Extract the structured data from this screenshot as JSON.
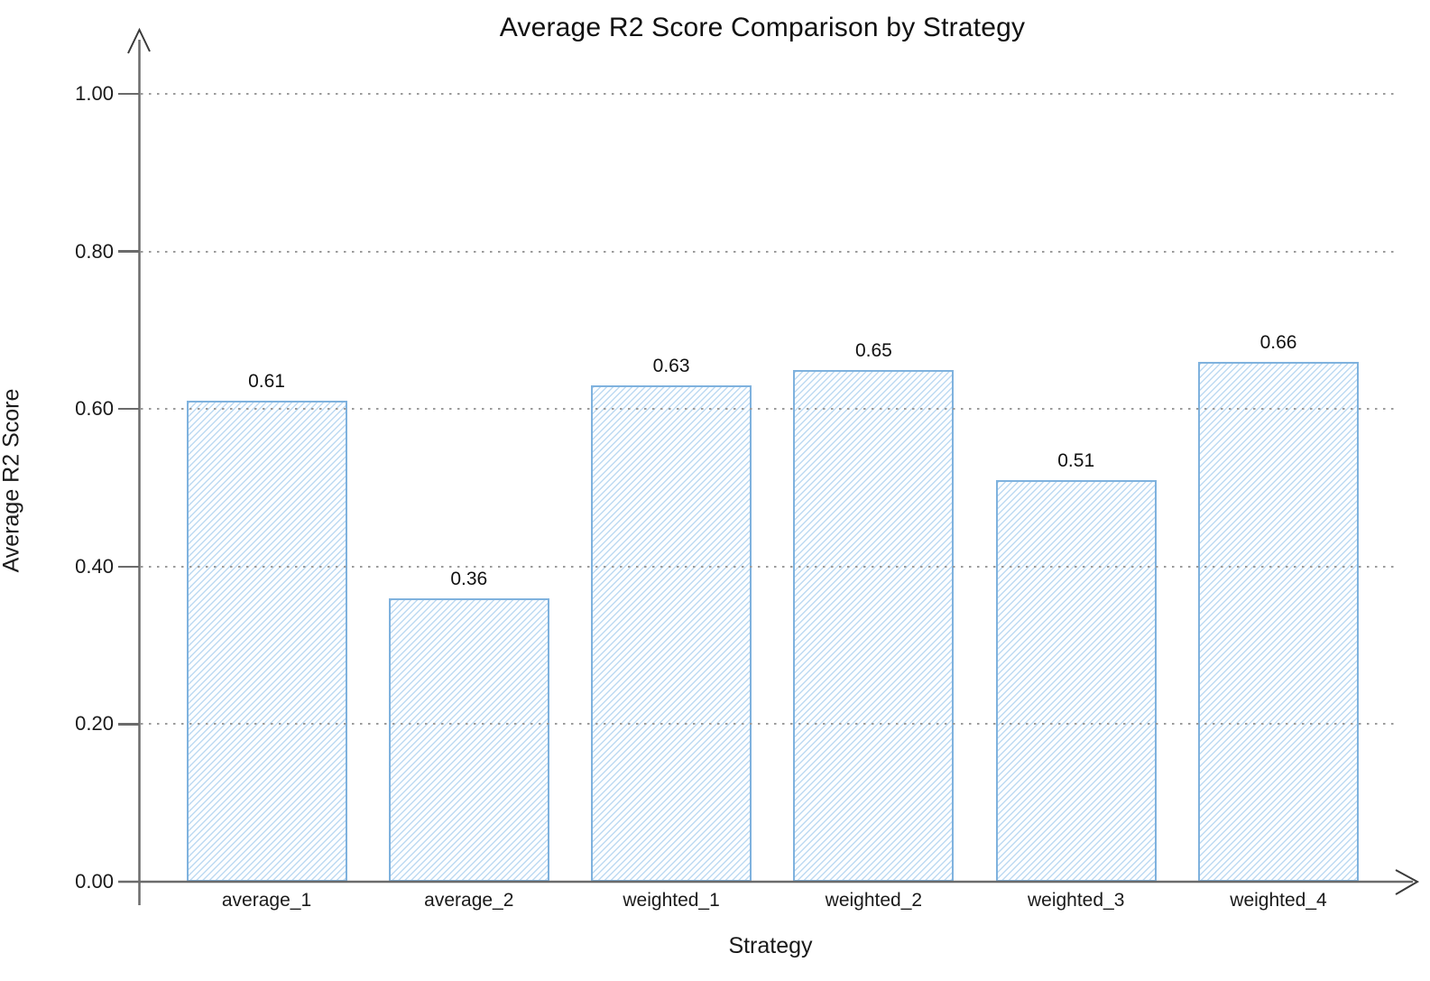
{
  "chart_data": {
    "type": "bar",
    "title": "Average R2 Score Comparison by Strategy",
    "xlabel": "Strategy",
    "ylabel": "Average R2 Score",
    "categories": [
      "average_1",
      "average_2",
      "weighted_1",
      "weighted_2",
      "weighted_3",
      "weighted_4"
    ],
    "values": [
      0.61,
      0.36,
      0.63,
      0.65,
      0.51,
      0.66
    ],
    "value_labels": [
      "0.61",
      "0.36",
      "0.63",
      "0.65",
      "0.51",
      "0.66"
    ],
    "y_tick_labels": [
      "0.00",
      "0.20",
      "0.40",
      "0.60",
      "0.80",
      "1.00"
    ],
    "y_tick_values": [
      0.0,
      0.2,
      0.4,
      0.6,
      0.8,
      1.0
    ],
    "ylim": [
      0,
      1.05
    ],
    "grid": "horizontal-dotted",
    "legend_position": "none",
    "colors": {
      "bar_border": "#7fb2de",
      "bar_hatch": "#a9cdec",
      "bar_fill": "#fdfeff",
      "axis": "#6b6b6b",
      "arrow": "#3a3a3a",
      "gridline": "#9b9b9b",
      "text": "#1a1a1a"
    }
  }
}
